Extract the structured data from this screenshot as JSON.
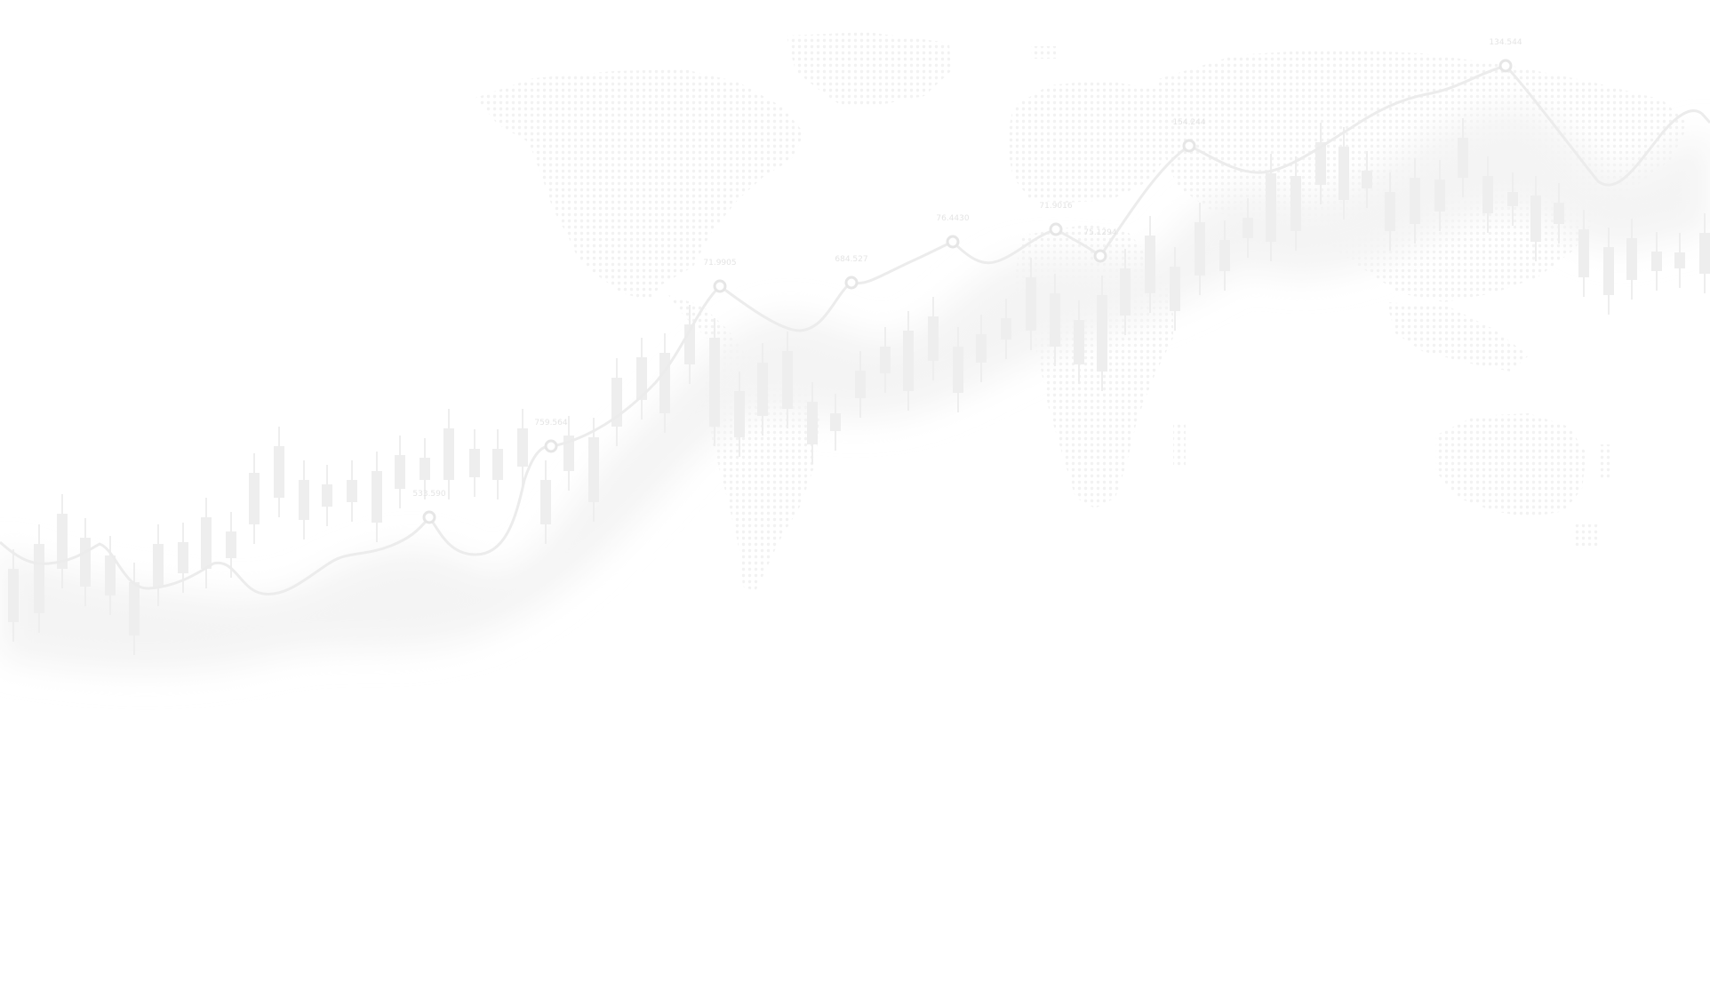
{
  "colors": {
    "background": "#ffffff",
    "map_dots": "#f2f2f2",
    "candles": "#eeeeee",
    "trend_line": "#ececec",
    "glow": "#f4f4f4",
    "marker_fill": "#ffffff",
    "marker_stroke": "#e6e6e6",
    "label": "#e4e4e4"
  },
  "trend_labels": [
    "533.590",
    "759.564",
    "71.9905",
    "684.527",
    "76.4430",
    "71.9016",
    "75.1294",
    "154.244",
    "134.544"
  ]
}
